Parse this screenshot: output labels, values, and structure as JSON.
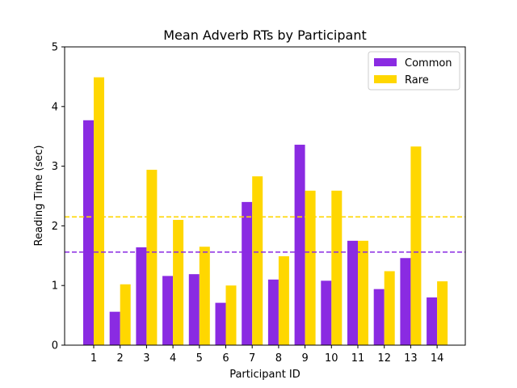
{
  "chart_data": {
    "type": "bar",
    "title": "Mean Adverb RTs by Participant",
    "xlabel": "Participant ID",
    "ylabel": "Reading Time (sec)",
    "ylim": [
      0,
      5
    ],
    "yticks": [
      0,
      1,
      2,
      3,
      4,
      5
    ],
    "categories": [
      "1",
      "2",
      "3",
      "4",
      "5",
      "6",
      "7",
      "8",
      "9",
      "10",
      "11",
      "12",
      "13",
      "14"
    ],
    "series": [
      {
        "name": "Common",
        "color": "#8a2be2",
        "values": [
          3.77,
          0.56,
          1.64,
          1.16,
          1.19,
          0.71,
          2.4,
          1.1,
          3.36,
          1.08,
          1.75,
          0.94,
          1.46,
          0.8
        ]
      },
      {
        "name": "Rare",
        "color": "#ffd700",
        "values": [
          4.49,
          1.02,
          2.94,
          2.1,
          1.65,
          1.0,
          2.83,
          1.49,
          2.59,
          2.59,
          1.75,
          1.24,
          3.33,
          1.07
        ]
      }
    ],
    "reference_lines": [
      {
        "series": "Common",
        "value": 1.56,
        "color": "#8a2be2",
        "style": "dashed"
      },
      {
        "series": "Rare",
        "value": 2.15,
        "color": "#ffd700",
        "style": "dashed"
      }
    ],
    "legend_position": "top-right",
    "grid": false
  }
}
